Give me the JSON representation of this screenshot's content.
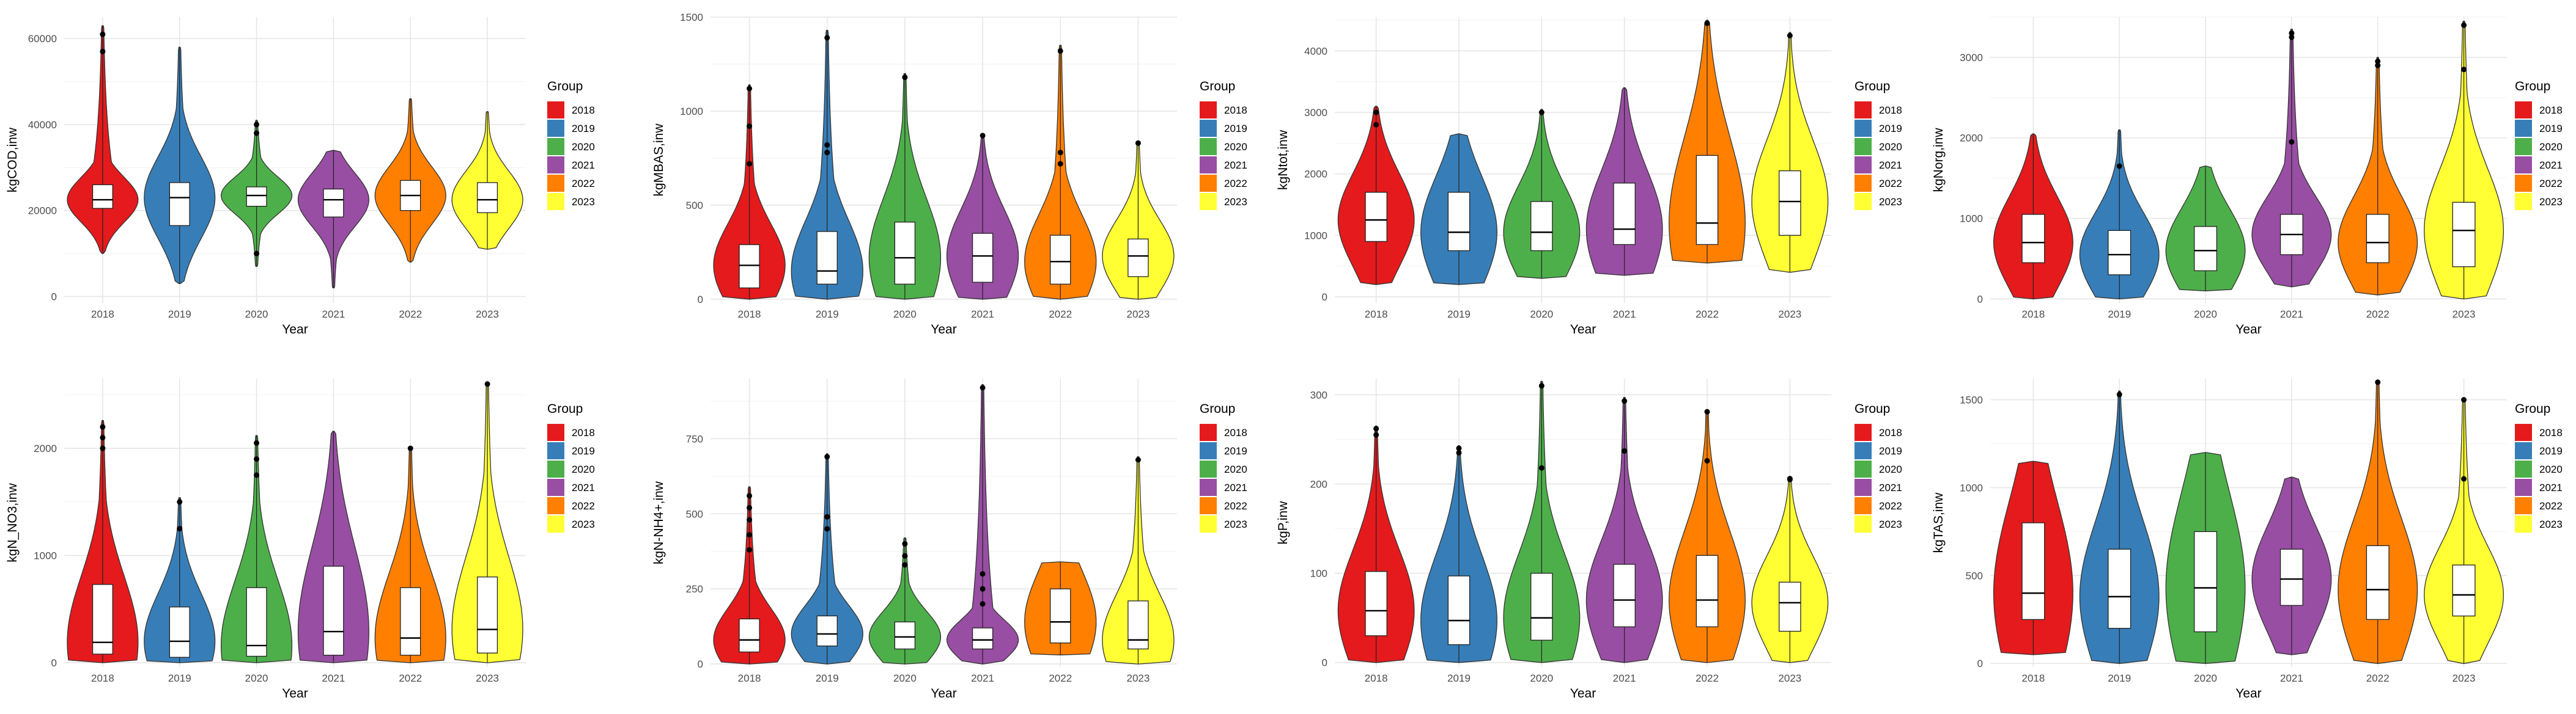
{
  "figure_title": "",
  "colors": {
    "2018": "#e41a1c",
    "2019": "#377eb8",
    "2020": "#4daf4a",
    "2021": "#984ea3",
    "2022": "#ff7f00",
    "2023": "#ffff33"
  },
  "chart_data": [
    {
      "type": "violin",
      "ylabel": "kgCOD,inw",
      "xlabel": "Year",
      "yticks": [
        0,
        20000,
        40000,
        60000
      ],
      "ylim": [
        -1500,
        65000
      ],
      "legend_title": "Group",
      "legend_labels": [
        "2018",
        "2019",
        "2020",
        "2021",
        "2022",
        "2023"
      ],
      "categories": [
        "2018",
        "2019",
        "2020",
        "2021",
        "2022",
        "2023"
      ],
      "series": [
        {
          "name": "2018",
          "min": 10000,
          "q1": 20500,
          "median": 22500,
          "q3": 26000,
          "max": 63000,
          "outliers": [
            61000,
            57000
          ]
        },
        {
          "name": "2019",
          "min": 3000,
          "q1": 16500,
          "median": 23000,
          "q3": 26500,
          "max": 58000,
          "outliers": []
        },
        {
          "name": "2020",
          "min": 7000,
          "q1": 21000,
          "median": 23500,
          "q3": 25500,
          "max": 41000,
          "outliers": [
            40000,
            38000,
            10000
          ]
        },
        {
          "name": "2021",
          "min": 2000,
          "q1": 18500,
          "median": 22500,
          "q3": 25000,
          "max": 34000,
          "outliers": []
        },
        {
          "name": "2022",
          "min": 8000,
          "q1": 20000,
          "median": 23500,
          "q3": 27000,
          "max": 46000,
          "outliers": []
        },
        {
          "name": "2023",
          "min": 11000,
          "q1": 19500,
          "median": 22500,
          "q3": 26500,
          "max": 43000,
          "outliers": []
        }
      ]
    },
    {
      "type": "violin",
      "ylabel": "kgMBAS,inw",
      "xlabel": "Year",
      "yticks": [
        0,
        500,
        1000,
        1500
      ],
      "ylim": [
        -20,
        1500
      ],
      "legend_title": "Group",
      "legend_labels": [
        "2018",
        "2019",
        "2020",
        "2021",
        "2022",
        "2023"
      ],
      "categories": [
        "2018",
        "2019",
        "2020",
        "2021",
        "2022",
        "2023"
      ],
      "series": [
        {
          "name": "2018",
          "min": 0,
          "q1": 60,
          "median": 180,
          "q3": 290,
          "max": 1140,
          "outliers": [
            1120,
            920,
            720
          ]
        },
        {
          "name": "2019",
          "min": 0,
          "q1": 80,
          "median": 150,
          "q3": 360,
          "max": 1430,
          "outliers": [
            1390,
            820,
            780
          ]
        },
        {
          "name": "2020",
          "min": 0,
          "q1": 80,
          "median": 220,
          "q3": 410,
          "max": 1200,
          "outliers": [
            1180
          ]
        },
        {
          "name": "2021",
          "min": 0,
          "q1": 90,
          "median": 230,
          "q3": 350,
          "max": 880,
          "outliers": [
            870
          ]
        },
        {
          "name": "2022",
          "min": 0,
          "q1": 80,
          "median": 200,
          "q3": 340,
          "max": 1350,
          "outliers": [
            1320,
            780,
            720
          ]
        },
        {
          "name": "2023",
          "min": 0,
          "q1": 120,
          "median": 230,
          "q3": 320,
          "max": 840,
          "outliers": [
            830
          ]
        }
      ]
    },
    {
      "type": "violin",
      "ylabel": "kgNtot,inw",
      "xlabel": "Year",
      "yticks": [
        0,
        1000,
        2000,
        3000,
        4000
      ],
      "ylim": [
        -100,
        4550
      ],
      "legend_title": "Group",
      "legend_labels": [
        "2018",
        "2019",
        "2020",
        "2021",
        "2022",
        "2023"
      ],
      "categories": [
        "2018",
        "2019",
        "2020",
        "2021",
        "2022",
        "2023"
      ],
      "series": [
        {
          "name": "2018",
          "min": 200,
          "q1": 900,
          "median": 1250,
          "q3": 1700,
          "max": 3100,
          "outliers": [
            3000,
            2800
          ]
        },
        {
          "name": "2019",
          "min": 200,
          "q1": 750,
          "median": 1050,
          "q3": 1700,
          "max": 2650,
          "outliers": []
        },
        {
          "name": "2020",
          "min": 300,
          "q1": 750,
          "median": 1050,
          "q3": 1550,
          "max": 3050,
          "outliers": [
            3000
          ]
        },
        {
          "name": "2021",
          "min": 350,
          "q1": 850,
          "median": 1100,
          "q3": 1850,
          "max": 3400,
          "outliers": []
        },
        {
          "name": "2022",
          "min": 550,
          "q1": 850,
          "median": 1200,
          "q3": 2300,
          "max": 4500,
          "outliers": [
            4450
          ]
        },
        {
          "name": "2023",
          "min": 400,
          "q1": 1000,
          "median": 1550,
          "q3": 2050,
          "max": 4300,
          "outliers": [
            4250
          ]
        }
      ]
    },
    {
      "type": "violin",
      "ylabel": "kgNorg,inw",
      "xlabel": "Year",
      "yticks": [
        0,
        1000,
        2000,
        3000
      ],
      "ylim": [
        -50,
        3500
      ],
      "legend_title": "Group",
      "legend_labels": [
        "2018",
        "2019",
        "2020",
        "2021",
        "2022",
        "2023"
      ],
      "categories": [
        "2018",
        "2019",
        "2020",
        "2021",
        "2022",
        "2023"
      ],
      "series": [
        {
          "name": "2018",
          "min": 0,
          "q1": 450,
          "median": 700,
          "q3": 1050,
          "max": 2050,
          "outliers": []
        },
        {
          "name": "2019",
          "min": 0,
          "q1": 300,
          "median": 550,
          "q3": 850,
          "max": 2100,
          "outliers": [
            1650
          ]
        },
        {
          "name": "2020",
          "min": 100,
          "q1": 350,
          "median": 600,
          "q3": 900,
          "max": 1650,
          "outliers": []
        },
        {
          "name": "2021",
          "min": 150,
          "q1": 550,
          "median": 800,
          "q3": 1050,
          "max": 3350,
          "outliers": [
            3300,
            3250,
            1950
          ]
        },
        {
          "name": "2022",
          "min": 50,
          "q1": 450,
          "median": 700,
          "q3": 1050,
          "max": 3000,
          "outliers": [
            2950,
            2900
          ]
        },
        {
          "name": "2023",
          "min": 0,
          "q1": 400,
          "median": 850,
          "q3": 1200,
          "max": 3450,
          "outliers": [
            3400,
            2850
          ]
        }
      ]
    },
    {
      "type": "violin",
      "ylabel": "kgN_NO3,inw",
      "xlabel": "Year",
      "yticks": [
        0,
        1000,
        2000
      ],
      "ylim": [
        -40,
        2650
      ],
      "legend_title": "Group",
      "legend_labels": [
        "2018",
        "2019",
        "2020",
        "2021",
        "2022",
        "2023"
      ],
      "categories": [
        "2018",
        "2019",
        "2020",
        "2021",
        "2022",
        "2023"
      ],
      "series": [
        {
          "name": "2018",
          "min": 0,
          "q1": 80,
          "median": 190,
          "q3": 730,
          "max": 2260,
          "outliers": [
            2200,
            2100,
            2000
          ]
        },
        {
          "name": "2019",
          "min": 0,
          "q1": 50,
          "median": 200,
          "q3": 520,
          "max": 1540,
          "outliers": [
            1500,
            1250
          ]
        },
        {
          "name": "2020",
          "min": 0,
          "q1": 60,
          "median": 160,
          "q3": 700,
          "max": 2120,
          "outliers": [
            2050,
            1900,
            1750
          ]
        },
        {
          "name": "2021",
          "min": 0,
          "q1": 70,
          "median": 290,
          "q3": 900,
          "max": 2160,
          "outliers": []
        },
        {
          "name": "2022",
          "min": 0,
          "q1": 70,
          "median": 230,
          "q3": 700,
          "max": 2020,
          "outliers": [
            2000
          ]
        },
        {
          "name": "2023",
          "min": 0,
          "q1": 90,
          "median": 310,
          "q3": 800,
          "max": 2620,
          "outliers": [
            2600
          ]
        }
      ]
    },
    {
      "type": "violin",
      "ylabel": "kgN-NH4+,inw",
      "xlabel": "Year",
      "yticks": [
        0,
        250,
        500,
        750
      ],
      "ylim": [
        -10,
        950
      ],
      "legend_title": "Group",
      "legend_labels": [
        "2018",
        "2019",
        "2020",
        "2021",
        "2022",
        "2023"
      ],
      "categories": [
        "2018",
        "2019",
        "2020",
        "2021",
        "2022",
        "2023"
      ],
      "series": [
        {
          "name": "2018",
          "min": 0,
          "q1": 40,
          "median": 80,
          "q3": 150,
          "max": 590,
          "outliers": [
            560,
            520,
            480,
            430,
            380
          ]
        },
        {
          "name": "2019",
          "min": 0,
          "q1": 60,
          "median": 100,
          "q3": 160,
          "max": 700,
          "outliers": [
            690,
            490,
            450
          ]
        },
        {
          "name": "2020",
          "min": 0,
          "q1": 50,
          "median": 90,
          "q3": 140,
          "max": 420,
          "outliers": [
            400,
            360,
            330
          ]
        },
        {
          "name": "2021",
          "min": 0,
          "q1": 50,
          "median": 80,
          "q3": 120,
          "max": 930,
          "outliers": [
            920,
            300,
            250,
            200
          ]
        },
        {
          "name": "2022",
          "min": 30,
          "q1": 70,
          "median": 140,
          "q3": 250,
          "max": 340,
          "outliers": []
        },
        {
          "name": "2023",
          "min": 0,
          "q1": 50,
          "median": 80,
          "q3": 210,
          "max": 690,
          "outliers": [
            680
          ]
        }
      ]
    },
    {
      "type": "violin",
      "ylabel": "kgP,inw",
      "xlabel": "Year",
      "yticks": [
        0,
        100,
        200,
        300
      ],
      "ylim": [
        -5,
        318
      ],
      "legend_title": "Group",
      "legend_labels": [
        "2018",
        "2019",
        "2020",
        "2021",
        "2022",
        "2023"
      ],
      "categories": [
        "2018",
        "2019",
        "2020",
        "2021",
        "2022",
        "2023"
      ],
      "series": [
        {
          "name": "2018",
          "min": 0,
          "q1": 30,
          "median": 58,
          "q3": 102,
          "max": 265,
          "outliers": [
            262,
            255
          ]
        },
        {
          "name": "2019",
          "min": 0,
          "q1": 20,
          "median": 47,
          "q3": 97,
          "max": 243,
          "outliers": [
            240,
            235
          ]
        },
        {
          "name": "2020",
          "min": 0,
          "q1": 25,
          "median": 50,
          "q3": 100,
          "max": 315,
          "outliers": [
            310,
            218
          ]
        },
        {
          "name": "2021",
          "min": 0,
          "q1": 40,
          "median": 70,
          "q3": 110,
          "max": 297,
          "outliers": [
            293,
            237
          ]
        },
        {
          "name": "2022",
          "min": 0,
          "q1": 40,
          "median": 70,
          "q3": 120,
          "max": 283,
          "outliers": [
            281,
            226
          ]
        },
        {
          "name": "2023",
          "min": 0,
          "q1": 35,
          "median": 67,
          "q3": 90,
          "max": 207,
          "outliers": [
            206,
            205
          ]
        }
      ]
    },
    {
      "type": "violin",
      "ylabel": "kgTAS,inw",
      "xlabel": "Year",
      "yticks": [
        0,
        500,
        1000,
        1500
      ],
      "ylim": [
        -20,
        1620
      ],
      "legend_title": "Group",
      "legend_labels": [
        "2018",
        "2019",
        "2020",
        "2021",
        "2022",
        "2023"
      ],
      "categories": [
        "2018",
        "2019",
        "2020",
        "2021",
        "2022",
        "2023"
      ],
      "series": [
        {
          "name": "2018",
          "min": 50,
          "q1": 250,
          "median": 400,
          "q3": 800,
          "max": 1150,
          "outliers": []
        },
        {
          "name": "2019",
          "min": 0,
          "q1": 200,
          "median": 380,
          "q3": 650,
          "max": 1550,
          "outliers": [
            1530
          ]
        },
        {
          "name": "2020",
          "min": 0,
          "q1": 180,
          "median": 430,
          "q3": 750,
          "max": 1200,
          "outliers": []
        },
        {
          "name": "2021",
          "min": 50,
          "q1": 330,
          "median": 480,
          "q3": 650,
          "max": 1060,
          "outliers": []
        },
        {
          "name": "2022",
          "min": 0,
          "q1": 250,
          "median": 420,
          "q3": 670,
          "max": 1610,
          "outliers": [
            1600
          ]
        },
        {
          "name": "2023",
          "min": 0,
          "q1": 270,
          "median": 390,
          "q3": 560,
          "max": 1510,
          "outliers": [
            1500,
            1050
          ]
        }
      ]
    }
  ]
}
